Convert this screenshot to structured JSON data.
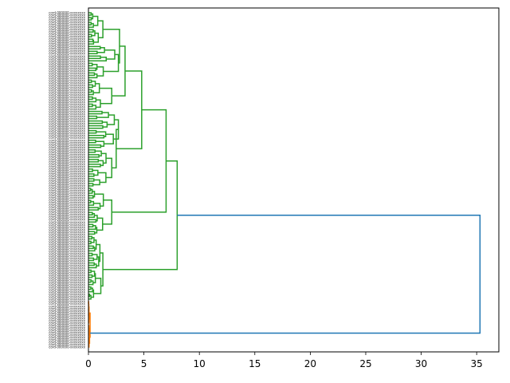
{
  "chart_data": {
    "type": "dendrogram",
    "orientation": "left",
    "title": "",
    "xlabel": "",
    "ylabel": "",
    "xlim": [
      0,
      37
    ],
    "xticks": [
      0,
      5,
      10,
      15,
      20,
      25,
      30,
      35
    ],
    "leaf_count": 140,
    "leaf_label_pattern": "cord-XXXXXX-xxxxxxxx (illegible at this resolution)",
    "cluster_colors": {
      "green": "#2ca02c",
      "orange": "#ff7f0e",
      "link": "#1f77b4"
    },
    "top_merge_height": 35.3,
    "green_cluster_root_height": 8.0,
    "green_subcluster_heights": [
      7.0,
      4.8,
      3.3,
      3.0,
      2.8,
      2.5,
      2.1,
      1.8,
      1.5,
      1.3
    ],
    "orange_cluster_heights": [
      0.15,
      0.1,
      0.05
    ]
  }
}
